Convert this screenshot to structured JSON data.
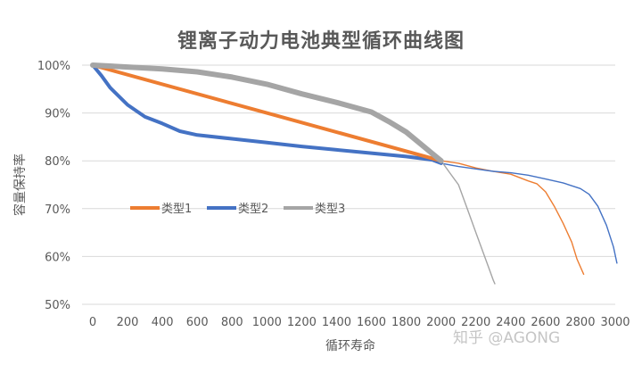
{
  "chart_data": {
    "type": "line",
    "title": "锂离子动力电池典型循环曲线图",
    "xlabel": "循环寿命",
    "ylabel": "容量保持率",
    "xlim": [
      0,
      3000
    ],
    "ylim": [
      50,
      100
    ],
    "x_ticks": [
      0,
      200,
      400,
      600,
      800,
      1000,
      1200,
      1400,
      1600,
      1800,
      2000,
      2200,
      2400,
      2600,
      2800,
      3000
    ],
    "y_ticks": [
      "50%",
      "60%",
      "70%",
      "80%",
      "90%",
      "100%"
    ],
    "y_tick_values": [
      50,
      60,
      70,
      80,
      90,
      100
    ],
    "grid": "horizontal",
    "legend_position": "left-middle",
    "series": [
      {
        "name": "类型1",
        "color": "#ED7D31",
        "thick_segment": [
          [
            0,
            100
          ],
          [
            2000,
            80
          ]
        ],
        "thin_segment": [
          [
            2000,
            80
          ],
          [
            2100,
            79.5
          ],
          [
            2200,
            78.5
          ],
          [
            2300,
            77.8
          ],
          [
            2400,
            77.2
          ],
          [
            2500,
            75.8
          ],
          [
            2550,
            75.2
          ],
          [
            2600,
            73.5
          ],
          [
            2650,
            70.5
          ],
          [
            2700,
            67
          ],
          [
            2750,
            63
          ],
          [
            2780,
            59.5
          ],
          [
            2820,
            56.2
          ]
        ]
      },
      {
        "name": "类型2",
        "color": "#4472C4",
        "thick_segment": [
          [
            0,
            100
          ],
          [
            50,
            97.8
          ],
          [
            100,
            95.3
          ],
          [
            200,
            91.7
          ],
          [
            300,
            89.2
          ],
          [
            400,
            87.8
          ],
          [
            500,
            86.2
          ],
          [
            600,
            85.4
          ],
          [
            800,
            84.6
          ],
          [
            1000,
            83.8
          ],
          [
            1200,
            83
          ],
          [
            1400,
            82.3
          ],
          [
            1600,
            81.6
          ],
          [
            1800,
            80.9
          ],
          [
            1950,
            80.2
          ],
          [
            2000,
            79.5
          ]
        ],
        "thin_segment": [
          [
            2000,
            79.5
          ],
          [
            2100,
            78.8
          ],
          [
            2200,
            78.3
          ],
          [
            2300,
            77.8
          ],
          [
            2400,
            77.5
          ],
          [
            2500,
            77
          ],
          [
            2600,
            76.2
          ],
          [
            2700,
            75.4
          ],
          [
            2800,
            74.2
          ],
          [
            2850,
            73
          ],
          [
            2900,
            70.5
          ],
          [
            2950,
            66.5
          ],
          [
            2990,
            62
          ],
          [
            3010,
            58.5
          ]
        ]
      },
      {
        "name": "类型3",
        "color": "#A5A5A5",
        "thick_segment": [
          [
            0,
            100
          ],
          [
            200,
            99.6
          ],
          [
            400,
            99.2
          ],
          [
            600,
            98.6
          ],
          [
            800,
            97.5
          ],
          [
            1000,
            96
          ],
          [
            1200,
            94
          ],
          [
            1400,
            92.2
          ],
          [
            1600,
            90.2
          ],
          [
            1700,
            88.2
          ],
          [
            1800,
            86
          ],
          [
            1900,
            83
          ],
          [
            1950,
            81.5
          ],
          [
            2000,
            80
          ]
        ],
        "thin_segment": [
          [
            2000,
            80
          ],
          [
            2050,
            77.5
          ],
          [
            2100,
            75
          ],
          [
            2150,
            70
          ],
          [
            2200,
            65
          ],
          [
            2250,
            60
          ],
          [
            2280,
            57
          ],
          [
            2300,
            55
          ],
          [
            2310,
            54.2
          ]
        ]
      }
    ]
  },
  "watermark": "知乎 @AGONG"
}
